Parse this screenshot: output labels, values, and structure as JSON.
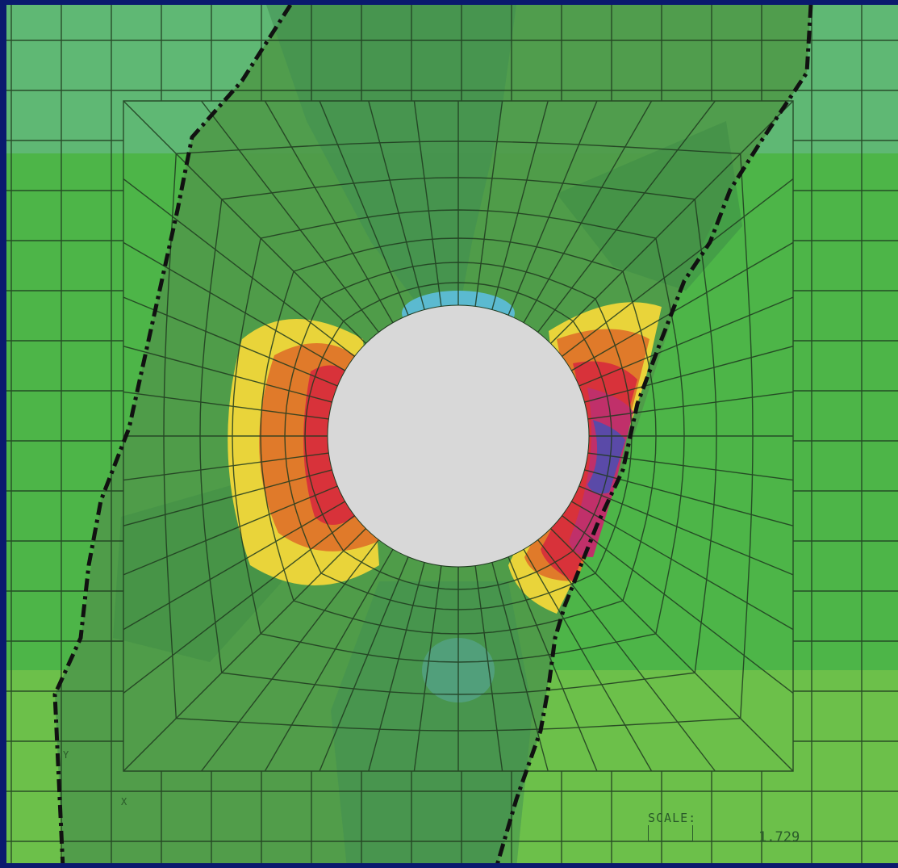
{
  "scale": {
    "label": "SCALE:",
    "value": "1.729"
  },
  "axes": {
    "y_label": "Y",
    "x_label": "X"
  },
  "colors": {
    "frame": "#0a1a6e",
    "background_top": "#5fb874",
    "background_mid": "#4db548",
    "background_bottom": "#6cc04a",
    "plastic_band": "#4f9a4a",
    "contour_light_blue": "#5bbad0",
    "contour_yellow": "#e9d43a",
    "contour_orange": "#e07a2a",
    "contour_red": "#d8323a",
    "contour_magenta": "#c0306a",
    "contour_purple": "#5a4aa8",
    "hole": "#d8d8d8",
    "mesh": "#1f3a1f",
    "boundary": "#111111"
  }
}
